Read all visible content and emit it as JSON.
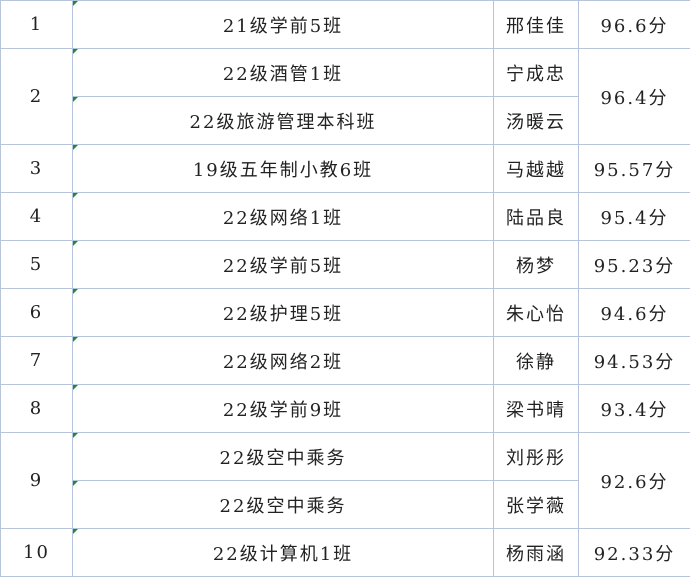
{
  "rows": [
    {
      "rank": "1",
      "classes": [
        "21级学前5班"
      ],
      "names": [
        "邢佳佳"
      ],
      "score": "96.6分"
    },
    {
      "rank": "2",
      "classes": [
        "22级酒管1班",
        "22级旅游管理本科班"
      ],
      "names": [
        "宁成忠",
        "汤暖云"
      ],
      "score": "96.4分"
    },
    {
      "rank": "3",
      "classes": [
        "19级五年制小教6班"
      ],
      "names": [
        "马越越"
      ],
      "score": "95.57分"
    },
    {
      "rank": "4",
      "classes": [
        "22级网络1班"
      ],
      "names": [
        "陆品良"
      ],
      "score": "95.4分"
    },
    {
      "rank": "5",
      "classes": [
        "22级学前5班"
      ],
      "names": [
        "杨梦"
      ],
      "score": "95.23分"
    },
    {
      "rank": "6",
      "classes": [
        "22级护理5班"
      ],
      "names": [
        "朱心怡"
      ],
      "score": "94.6分"
    },
    {
      "rank": "7",
      "classes": [
        "22级网络2班"
      ],
      "names": [
        "徐静"
      ],
      "score": "94.53分"
    },
    {
      "rank": "8",
      "classes": [
        "22级学前9班"
      ],
      "names": [
        "梁书晴"
      ],
      "score": "93.4分"
    },
    {
      "rank": "9",
      "classes": [
        "22级空中乘务",
        "22级空中乘务"
      ],
      "names": [
        "刘彤彤",
        "张学薇"
      ],
      "score": "92.6分"
    },
    {
      "rank": "10",
      "classes": [
        "22级计算机1班"
      ],
      "names": [
        "杨雨涵"
      ],
      "score": "92.33分"
    }
  ]
}
